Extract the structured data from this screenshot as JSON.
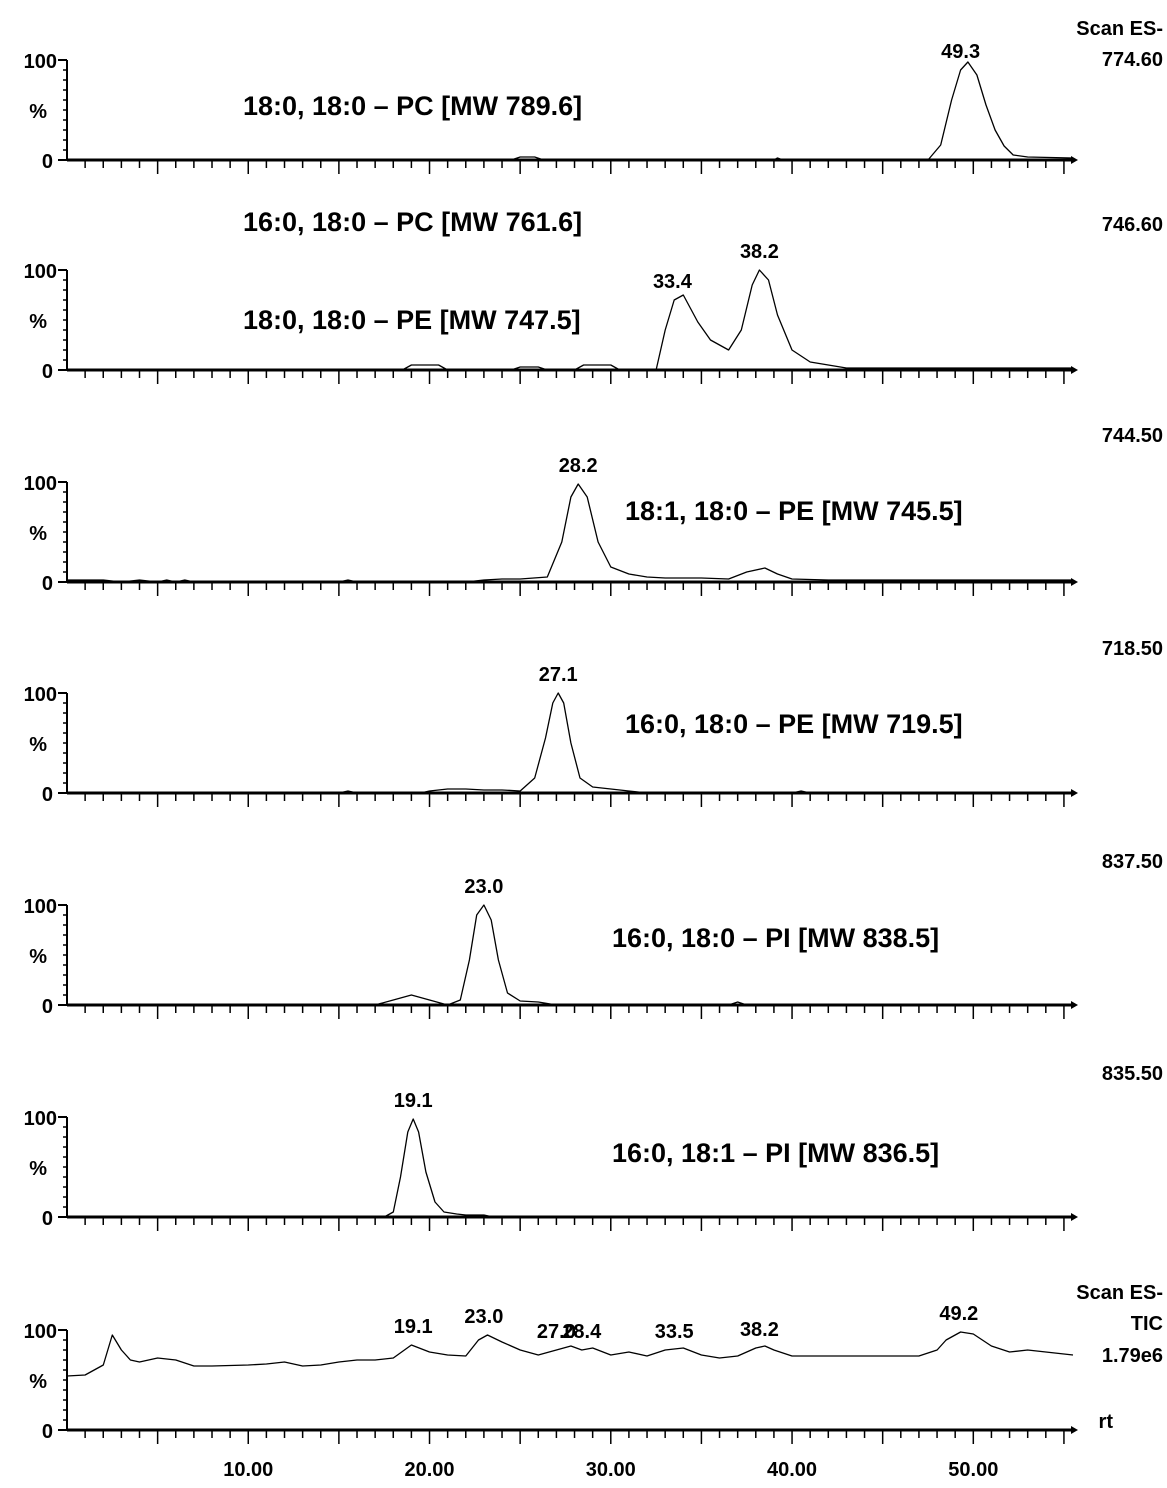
{
  "chart_data": [
    {
      "type": "line",
      "scan_label": "Scan ES-",
      "mass": "774.60",
      "compounds": [
        "18:0, 18:0 – PC [MW 789.6]"
      ],
      "y_ticks": [
        "100",
        "%",
        "0"
      ],
      "ylim": [
        0,
        100
      ],
      "xlim": [
        0,
        55.5
      ],
      "peak_labels": [
        {
          "x": 49.3,
          "text": "49.3"
        }
      ],
      "x": [
        0,
        15,
        24.5,
        25,
        25.8,
        26.3,
        39,
        39.2,
        39.5,
        47.5,
        48.2,
        48.8,
        49.3,
        49.7,
        50.2,
        50.7,
        51.2,
        51.7,
        52.2,
        53,
        55.5
      ],
      "y": [
        0,
        0,
        0,
        3,
        3,
        0,
        0,
        2,
        0,
        0,
        15,
        60,
        90,
        98,
        85,
        55,
        30,
        14,
        5,
        3,
        2
      ]
    },
    {
      "type": "line",
      "mass": "746.60",
      "compounds": [
        "16:0, 18:0 – PC [MW 761.6]",
        "18:0, 18:0 – PE [MW 747.5]"
      ],
      "y_ticks": [
        "100",
        "%",
        "0"
      ],
      "ylim": [
        0,
        100
      ],
      "xlim": [
        0,
        55.5
      ],
      "peak_labels": [
        {
          "x": 33.4,
          "text": "33.4"
        },
        {
          "x": 38.2,
          "text": "38.2"
        }
      ],
      "x": [
        0,
        18.5,
        19,
        20.5,
        21,
        24.5,
        25,
        26,
        26.5,
        28,
        28.5,
        30,
        30.5,
        32.5,
        33,
        33.5,
        34,
        34.8,
        35.5,
        36.5,
        37.2,
        37.8,
        38.2,
        38.7,
        39.2,
        40,
        41,
        42,
        43,
        55.5
      ],
      "y": [
        0,
        0,
        5,
        5,
        0,
        0,
        3,
        3,
        0,
        0,
        5,
        5,
        0,
        0,
        40,
        70,
        75,
        48,
        30,
        20,
        40,
        85,
        100,
        90,
        55,
        20,
        8,
        5,
        2,
        2
      ]
    },
    {
      "type": "line",
      "mass": "744.50",
      "compounds": [
        "18:1, 18:0 – PE [MW 745.5]"
      ],
      "y_ticks": [
        "100",
        "%",
        "0"
      ],
      "ylim": [
        0,
        100
      ],
      "xlim": [
        0,
        55.5
      ],
      "peak_labels": [
        {
          "x": 28.2,
          "text": "28.2"
        }
      ],
      "x": [
        0,
        2,
        3,
        4,
        5,
        5.5,
        6,
        6.5,
        7,
        15,
        15.5,
        16,
        22,
        23,
        24,
        25,
        26.5,
        27.3,
        27.8,
        28.2,
        28.7,
        29.3,
        30,
        31,
        32,
        33,
        35,
        36.5,
        37.5,
        38.5,
        39.2,
        40,
        42,
        55.5
      ],
      "y": [
        2,
        2,
        0,
        2,
        0,
        2,
        0,
        2,
        0,
        0,
        2,
        0,
        0,
        2,
        3,
        3,
        5,
        40,
        85,
        98,
        85,
        40,
        15,
        8,
        5,
        4,
        4,
        3,
        10,
        14,
        8,
        3,
        2,
        2
      ]
    },
    {
      "type": "line",
      "mass": "718.50",
      "compounds": [
        "16:0, 18:0 – PE [MW 719.5]"
      ],
      "y_ticks": [
        "100",
        "%",
        "0"
      ],
      "ylim": [
        0,
        100
      ],
      "xlim": [
        0,
        55.5
      ],
      "peak_labels": [
        {
          "x": 27.1,
          "text": "27.1"
        }
      ],
      "x": [
        0,
        15,
        15.5,
        16,
        19.5,
        20,
        21,
        22,
        23,
        24,
        25,
        25.8,
        26.4,
        26.8,
        27.1,
        27.4,
        27.8,
        28.3,
        29,
        30,
        31,
        32,
        40,
        40.5,
        41,
        55.5
      ],
      "y": [
        0,
        0,
        2,
        0,
        0,
        2,
        4,
        4,
        3,
        3,
        2,
        15,
        55,
        90,
        100,
        90,
        50,
        15,
        6,
        4,
        2,
        0,
        0,
        2,
        0,
        0
      ]
    },
    {
      "type": "line",
      "mass": "837.50",
      "compounds": [
        "16:0, 18:0 – PI [MW 838.5]"
      ],
      "y_ticks": [
        "100",
        "%",
        "0"
      ],
      "ylim": [
        0,
        100
      ],
      "xlim": [
        0,
        55.5
      ],
      "peak_labels": [
        {
          "x": 23.0,
          "text": "23.0"
        }
      ],
      "x": [
        0,
        17,
        18,
        19,
        20,
        21,
        21.7,
        22.2,
        22.6,
        23,
        23.4,
        23.8,
        24.3,
        25,
        26,
        27,
        36.5,
        37,
        37.5,
        55.5
      ],
      "y": [
        0,
        0,
        5,
        10,
        5,
        0,
        5,
        45,
        90,
        100,
        85,
        45,
        12,
        4,
        3,
        0,
        0,
        3,
        0,
        0
      ]
    },
    {
      "type": "line",
      "mass": "835.50",
      "compounds": [
        "16:0, 18:1 – PI [MW 836.5]"
      ],
      "y_ticks": [
        "100",
        "%",
        "0"
      ],
      "ylim": [
        0,
        100
      ],
      "xlim": [
        0,
        55.5
      ],
      "peak_labels": [
        {
          "x": 19.1,
          "text": "19.1"
        }
      ],
      "x": [
        0,
        17.5,
        18,
        18.4,
        18.8,
        19.1,
        19.4,
        19.8,
        20.3,
        20.8,
        21.5,
        22,
        23,
        23.5,
        24,
        55.5
      ],
      "y": [
        0,
        0,
        5,
        40,
        85,
        98,
        85,
        45,
        15,
        5,
        3,
        2,
        2,
        0,
        0,
        0
      ]
    },
    {
      "type": "line",
      "scan_label": "Scan ES-",
      "mass": "TIC",
      "intensity": "1.79e6",
      "axis_end_label": "rt",
      "compounds": [],
      "y_ticks": [
        "100",
        "%",
        "0"
      ],
      "ylim": [
        0,
        100
      ],
      "xlim": [
        0,
        55.5
      ],
      "x_ticks": [
        "10.00",
        "20.00",
        "30.00",
        "40.00",
        "50.00"
      ],
      "x_tick_values": [
        10,
        20,
        30,
        40,
        50
      ],
      "peak_labels": [
        {
          "x": 19.1,
          "text": "19.1"
        },
        {
          "x": 23.0,
          "text": "23.0"
        },
        {
          "x": 27.0,
          "text": "27.0"
        },
        {
          "x": 28.4,
          "text": "28.4"
        },
        {
          "x": 33.5,
          "text": "33.5"
        },
        {
          "x": 38.2,
          "text": "38.2"
        },
        {
          "x": 49.2,
          "text": "49.2"
        }
      ],
      "x": [
        0,
        1,
        2,
        2.5,
        3,
        3.5,
        4,
        5,
        6,
        7,
        8,
        10,
        11,
        12,
        13,
        14,
        15,
        16,
        17,
        18,
        19,
        20,
        21,
        22,
        22.7,
        23.2,
        24,
        25,
        26,
        27,
        27.8,
        28.4,
        29,
        30,
        31,
        32,
        33,
        34,
        35,
        36,
        37,
        38,
        38.5,
        39,
        40,
        41,
        43,
        45,
        47,
        48,
        48.5,
        49.3,
        50,
        51,
        52,
        53,
        54,
        55.5
      ],
      "y": [
        54,
        55,
        65,
        95,
        80,
        70,
        68,
        72,
        70,
        64,
        64,
        65,
        66,
        68,
        64,
        65,
        68,
        70,
        70,
        72,
        85,
        78,
        75,
        74,
        90,
        95,
        88,
        80,
        75,
        80,
        84,
        80,
        82,
        75,
        78,
        74,
        80,
        82,
        75,
        72,
        74,
        82,
        84,
        80,
        74,
        74,
        74,
        74,
        74,
        80,
        90,
        98,
        96,
        84,
        78,
        80,
        78,
        75
      ]
    }
  ]
}
